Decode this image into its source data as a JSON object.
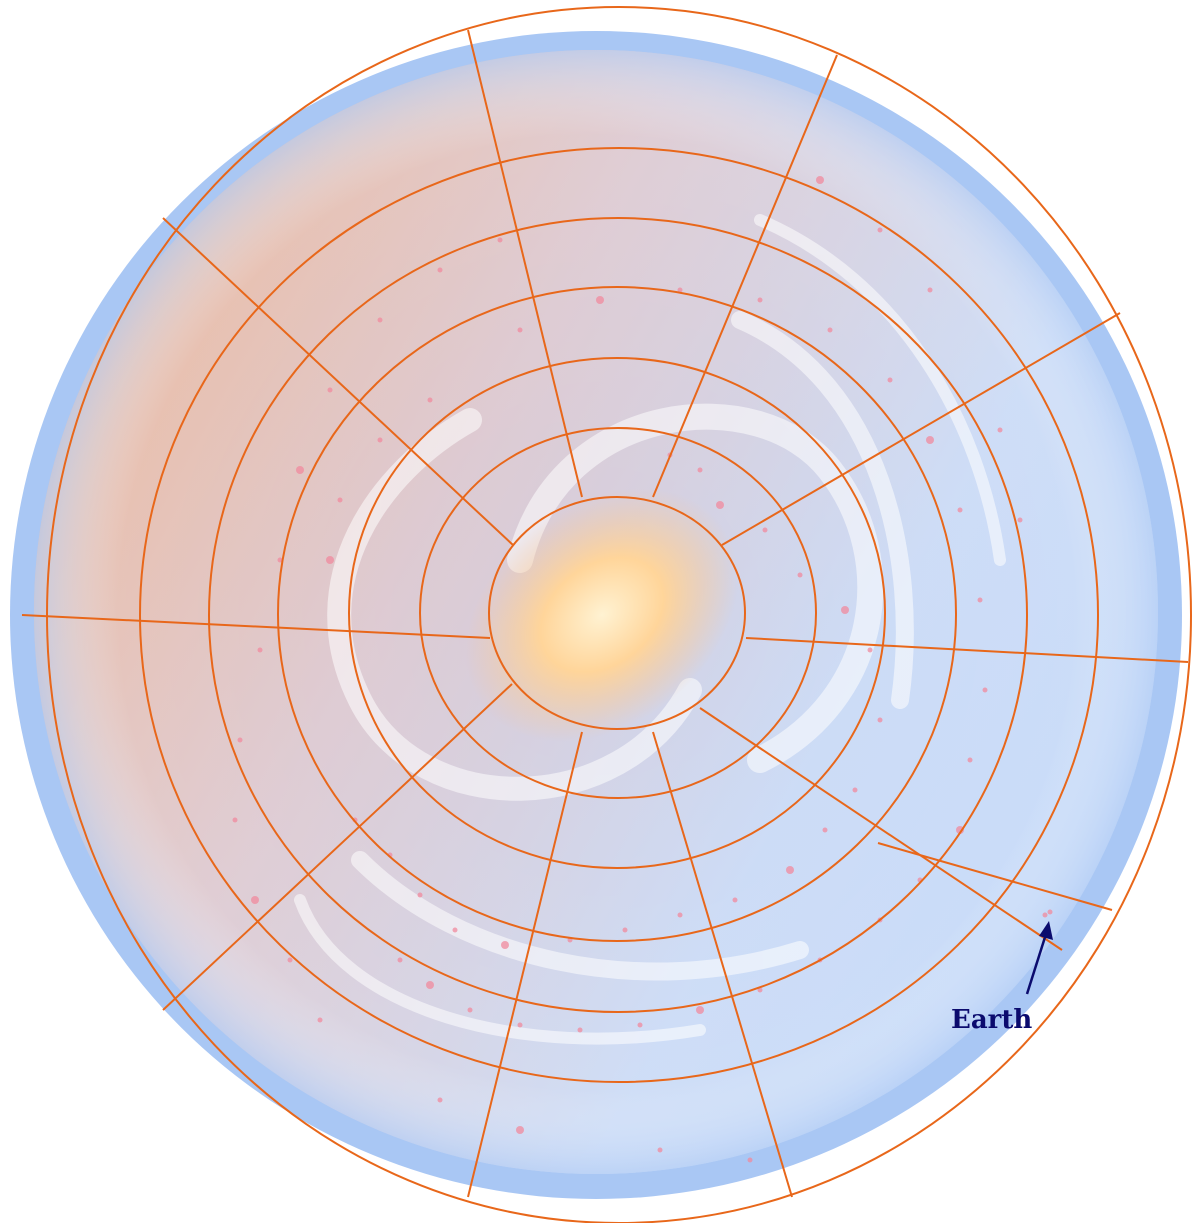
{
  "labels": {
    "earth": "Earth"
  },
  "colors": {
    "grid": "#e8671a",
    "earth_label": "#0b0b6e",
    "arrow": "#0b0b6e",
    "galaxy_outer": "#a9c7f4",
    "galaxy_disk_blue": "#c9dcf8",
    "galaxy_disk_orange": "#f4b489",
    "galaxy_core": "#ffd9a0",
    "star_points": "#f08a9e"
  },
  "icons": {
    "earth_marker": "arrow-icon"
  }
}
